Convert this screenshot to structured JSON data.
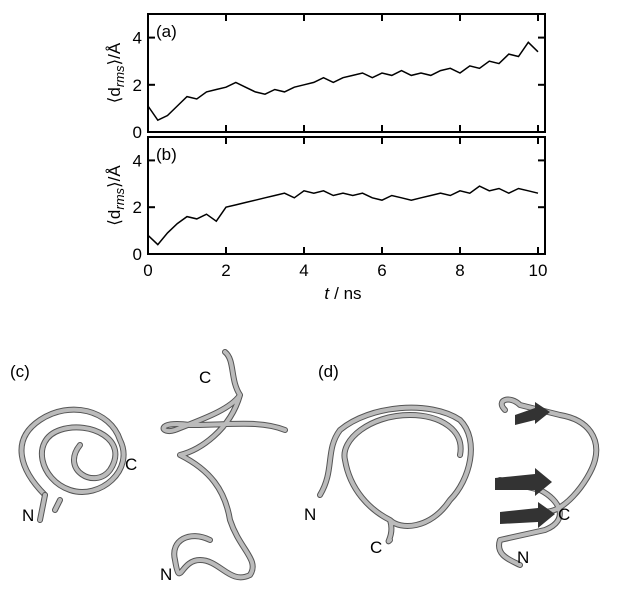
{
  "chart_data": [
    {
      "type": "line",
      "panel_label": "(a)",
      "ylabel": {
        "main": "⟨d",
        "sub": "rms",
        "tail": "⟩/Å"
      },
      "xlim": [
        0,
        10
      ],
      "ylim": [
        0,
        5
      ],
      "xticks": [
        0,
        2,
        4,
        6,
        8,
        10
      ],
      "yticks": [
        0,
        2,
        4
      ],
      "xtick_labels": false,
      "series": [
        {
          "color": "#000000",
          "x": [
            0,
            0.25,
            0.5,
            0.75,
            1,
            1.25,
            1.5,
            1.75,
            2,
            2.25,
            2.5,
            2.75,
            3,
            3.25,
            3.5,
            3.75,
            4,
            4.25,
            4.5,
            4.75,
            5,
            5.25,
            5.5,
            5.75,
            6,
            6.25,
            6.5,
            6.75,
            7,
            7.25,
            7.5,
            7.75,
            8,
            8.25,
            8.5,
            8.75,
            9,
            9.25,
            9.5,
            9.75,
            10
          ],
          "values": [
            1.1,
            0.5,
            0.7,
            1.1,
            1.5,
            1.4,
            1.7,
            1.8,
            1.9,
            2.1,
            1.9,
            1.7,
            1.6,
            1.8,
            1.7,
            1.9,
            2.0,
            2.1,
            2.3,
            2.1,
            2.3,
            2.4,
            2.5,
            2.3,
            2.5,
            2.4,
            2.6,
            2.4,
            2.5,
            2.4,
            2.6,
            2.7,
            2.5,
            2.8,
            2.7,
            3.0,
            2.9,
            3.3,
            3.2,
            3.8,
            3.4
          ]
        }
      ]
    },
    {
      "type": "line",
      "panel_label": "(b)",
      "ylabel": {
        "main": "⟨d",
        "sub": "rms",
        "tail": "⟩/Å"
      },
      "xlabel": {
        "var": "t",
        "unit": "/ ns"
      },
      "xlim": [
        0,
        10
      ],
      "ylim": [
        0,
        5
      ],
      "xticks": [
        0,
        2,
        4,
        6,
        8,
        10
      ],
      "yticks": [
        0,
        2,
        4
      ],
      "xtick_labels": true,
      "series": [
        {
          "color": "#000000",
          "x": [
            0,
            0.25,
            0.5,
            0.75,
            1,
            1.25,
            1.5,
            1.75,
            2,
            2.25,
            2.5,
            2.75,
            3,
            3.25,
            3.5,
            3.75,
            4,
            4.25,
            4.5,
            4.75,
            5,
            5.25,
            5.5,
            5.75,
            6,
            6.25,
            6.5,
            6.75,
            7,
            7.25,
            7.5,
            7.75,
            8,
            8.25,
            8.5,
            8.75,
            9,
            9.25,
            9.5,
            9.75,
            10
          ],
          "values": [
            0.8,
            0.4,
            0.9,
            1.3,
            1.6,
            1.5,
            1.7,
            1.4,
            2.0,
            2.1,
            2.2,
            2.3,
            2.4,
            2.5,
            2.6,
            2.4,
            2.7,
            2.6,
            2.7,
            2.5,
            2.6,
            2.5,
            2.6,
            2.4,
            2.3,
            2.5,
            2.4,
            2.3,
            2.4,
            2.5,
            2.6,
            2.5,
            2.7,
            2.6,
            2.9,
            2.7,
            2.8,
            2.6,
            2.8,
            2.7,
            2.6
          ]
        }
      ]
    }
  ],
  "structures": [
    {
      "label": "(c)",
      "termini": [
        "C",
        "N",
        "C",
        "N"
      ]
    },
    {
      "label": "(d)",
      "termini": [
        "N",
        "C",
        "C",
        "N"
      ]
    }
  ]
}
